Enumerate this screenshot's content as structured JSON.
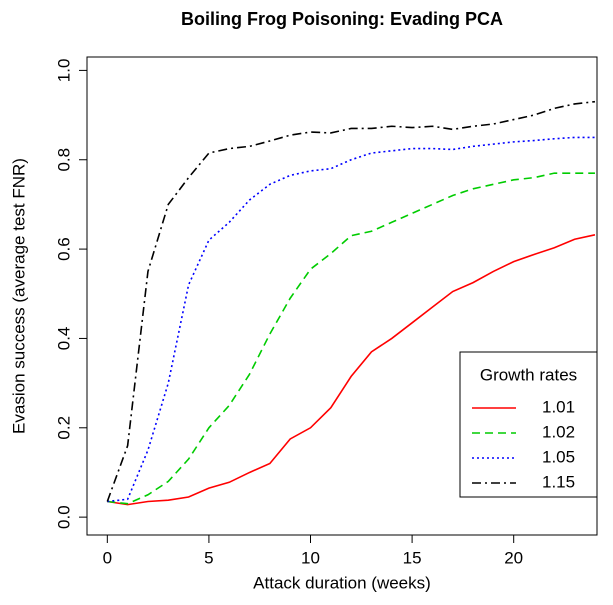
{
  "chart_data": {
    "type": "line",
    "title": "Boiling Frog Poisoning: Evading PCA",
    "x_label": "Attack duration (weeks)",
    "y_label": "Evasion success (average test FNR)",
    "x": [
      0,
      1,
      2,
      3,
      4,
      5,
      6,
      7,
      8,
      9,
      10,
      11,
      12,
      13,
      14,
      15,
      16,
      17,
      18,
      19,
      20,
      21,
      22,
      23,
      24
    ],
    "xlim": [
      -1,
      24.1
    ],
    "xticks": [
      0,
      5,
      10,
      15,
      20
    ],
    "ylim": [
      -0.04,
      1.03
    ],
    "yticks": [
      {
        "value": 0,
        "label": "0.0"
      },
      0.2,
      0.4,
      0.6,
      0.8,
      {
        "value": 1,
        "label": "1.0"
      }
    ],
    "legend_title": "Growth rates",
    "legend_position": "bottom-right",
    "series": [
      {
        "name": "1.01",
        "color": "#ff0000",
        "dash": "solid",
        "values": [
          0.035,
          0.028,
          0.035,
          0.038,
          0.045,
          0.065,
          0.078,
          0.1,
          0.12,
          0.175,
          0.2,
          0.245,
          0.315,
          0.37,
          0.4,
          0.435,
          0.47,
          0.505,
          0.525,
          0.55,
          0.572,
          0.588,
          0.603,
          0.622,
          0.632
        ]
      },
      {
        "name": "1.02",
        "color": "#00cc00",
        "dash": "dashed",
        "values": [
          0.035,
          0.03,
          0.05,
          0.08,
          0.13,
          0.2,
          0.25,
          0.32,
          0.41,
          0.49,
          0.555,
          0.59,
          0.63,
          0.64,
          0.66,
          0.68,
          0.7,
          0.72,
          0.735,
          0.745,
          0.755,
          0.76,
          0.77,
          0.77,
          0.77
        ]
      },
      {
        "name": "1.05",
        "color": "#0000ff",
        "dash": "dotted",
        "values": [
          0.035,
          0.04,
          0.15,
          0.3,
          0.52,
          0.62,
          0.66,
          0.71,
          0.745,
          0.765,
          0.775,
          0.78,
          0.8,
          0.815,
          0.82,
          0.825,
          0.825,
          0.823,
          0.83,
          0.835,
          0.84,
          0.843,
          0.847,
          0.85,
          0.85
        ]
      },
      {
        "name": "1.15",
        "color": "#000000",
        "dash": "dashdot",
        "values": [
          0.035,
          0.16,
          0.55,
          0.7,
          0.76,
          0.815,
          0.825,
          0.83,
          0.842,
          0.855,
          0.862,
          0.86,
          0.87,
          0.87,
          0.875,
          0.872,
          0.875,
          0.868,
          0.875,
          0.88,
          0.89,
          0.9,
          0.915,
          0.925,
          0.93
        ]
      }
    ]
  }
}
